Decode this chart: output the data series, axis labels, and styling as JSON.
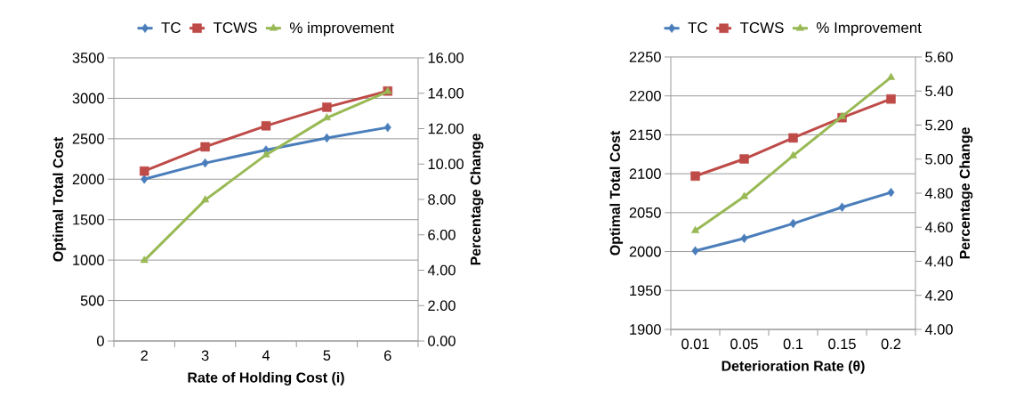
{
  "chart_data": [
    {
      "type": "line",
      "xlabel": "Rate of Holding Cost (i)",
      "ylabel": "Optimal Total Cost",
      "y2label": "Percentage Change",
      "categories": [
        "2",
        "3",
        "4",
        "5",
        "6"
      ],
      "ylim": [
        0,
        3500
      ],
      "yticks": [
        0,
        500,
        1000,
        1500,
        2000,
        2500,
        3000,
        3500
      ],
      "y2lim": [
        0,
        16
      ],
      "y2ticks": [
        {
          "value": 0,
          "label": "0.00"
        },
        {
          "value": 2,
          "label": "2.00"
        },
        {
          "value": 4,
          "label": "4.00"
        },
        {
          "value": 6,
          "label": "6.00"
        },
        {
          "value": 8,
          "label": "8.00"
        },
        {
          "value": 10,
          "label": "10.00"
        },
        {
          "value": 12,
          "label": "12.00"
        },
        {
          "value": 14,
          "label": "14.00"
        },
        {
          "value": 16,
          "label": "16.00"
        }
      ],
      "grid": "y",
      "legend": "top",
      "line_style": "solid",
      "series": [
        {
          "name": "TC",
          "color": "#4a7ebb",
          "marker": "diamond",
          "values": [
            2000,
            2200,
            2360,
            2510,
            2640
          ]
        },
        {
          "name": "TCWS",
          "color": "#be4b48",
          "marker": "square",
          "values": [
            2100,
            2400,
            2660,
            2890,
            3090
          ]
        },
        {
          "name": "% improvement",
          "color": "#98b954",
          "marker": "triangle",
          "axis": "y2",
          "values": [
            4.55,
            7.97,
            10.52,
            12.61,
            14.1
          ]
        }
      ]
    },
    {
      "type": "line",
      "xlabel": "Deterioration Rate (θ)",
      "ylabel": "Optimal Total Cost",
      "y2label": "Percentage Change",
      "categories": [
        "0.01",
        "0.05",
        "0.1",
        "0.15",
        "0.2"
      ],
      "ylim": [
        1900,
        2250
      ],
      "yticks": [
        1900,
        1950,
        2000,
        2050,
        2100,
        2150,
        2200,
        2250
      ],
      "y2lim": [
        4,
        5.6
      ],
      "y2ticks": [
        {
          "value": 4,
          "label": "4.00"
        },
        {
          "value": 4.2,
          "label": "4.20"
        },
        {
          "value": 4.4,
          "label": "4.40"
        },
        {
          "value": 4.6,
          "label": "4.60"
        },
        {
          "value": 4.8,
          "label": "4.80"
        },
        {
          "value": 5,
          "label": "5.00"
        },
        {
          "value": 5.2,
          "label": "5.20"
        },
        {
          "value": 5.4,
          "label": "5.40"
        },
        {
          "value": 5.6,
          "label": "5.60"
        }
      ],
      "grid": "y",
      "legend": "top",
      "line_style": "solid",
      "series": [
        {
          "name": "TC",
          "color": "#4a7ebb",
          "marker": "diamond",
          "values": [
            2001,
            2017,
            2036,
            2057,
            2076
          ]
        },
        {
          "name": "TCWS",
          "color": "#be4b48",
          "marker": "square",
          "values": [
            2097,
            2119,
            2146,
            2172,
            2196
          ]
        },
        {
          "name": "% Improvement",
          "color": "#98b954",
          "marker": "triangle",
          "axis": "y2",
          "values": [
            4.58,
            4.78,
            5.02,
            5.25,
            5.48
          ]
        }
      ]
    }
  ]
}
